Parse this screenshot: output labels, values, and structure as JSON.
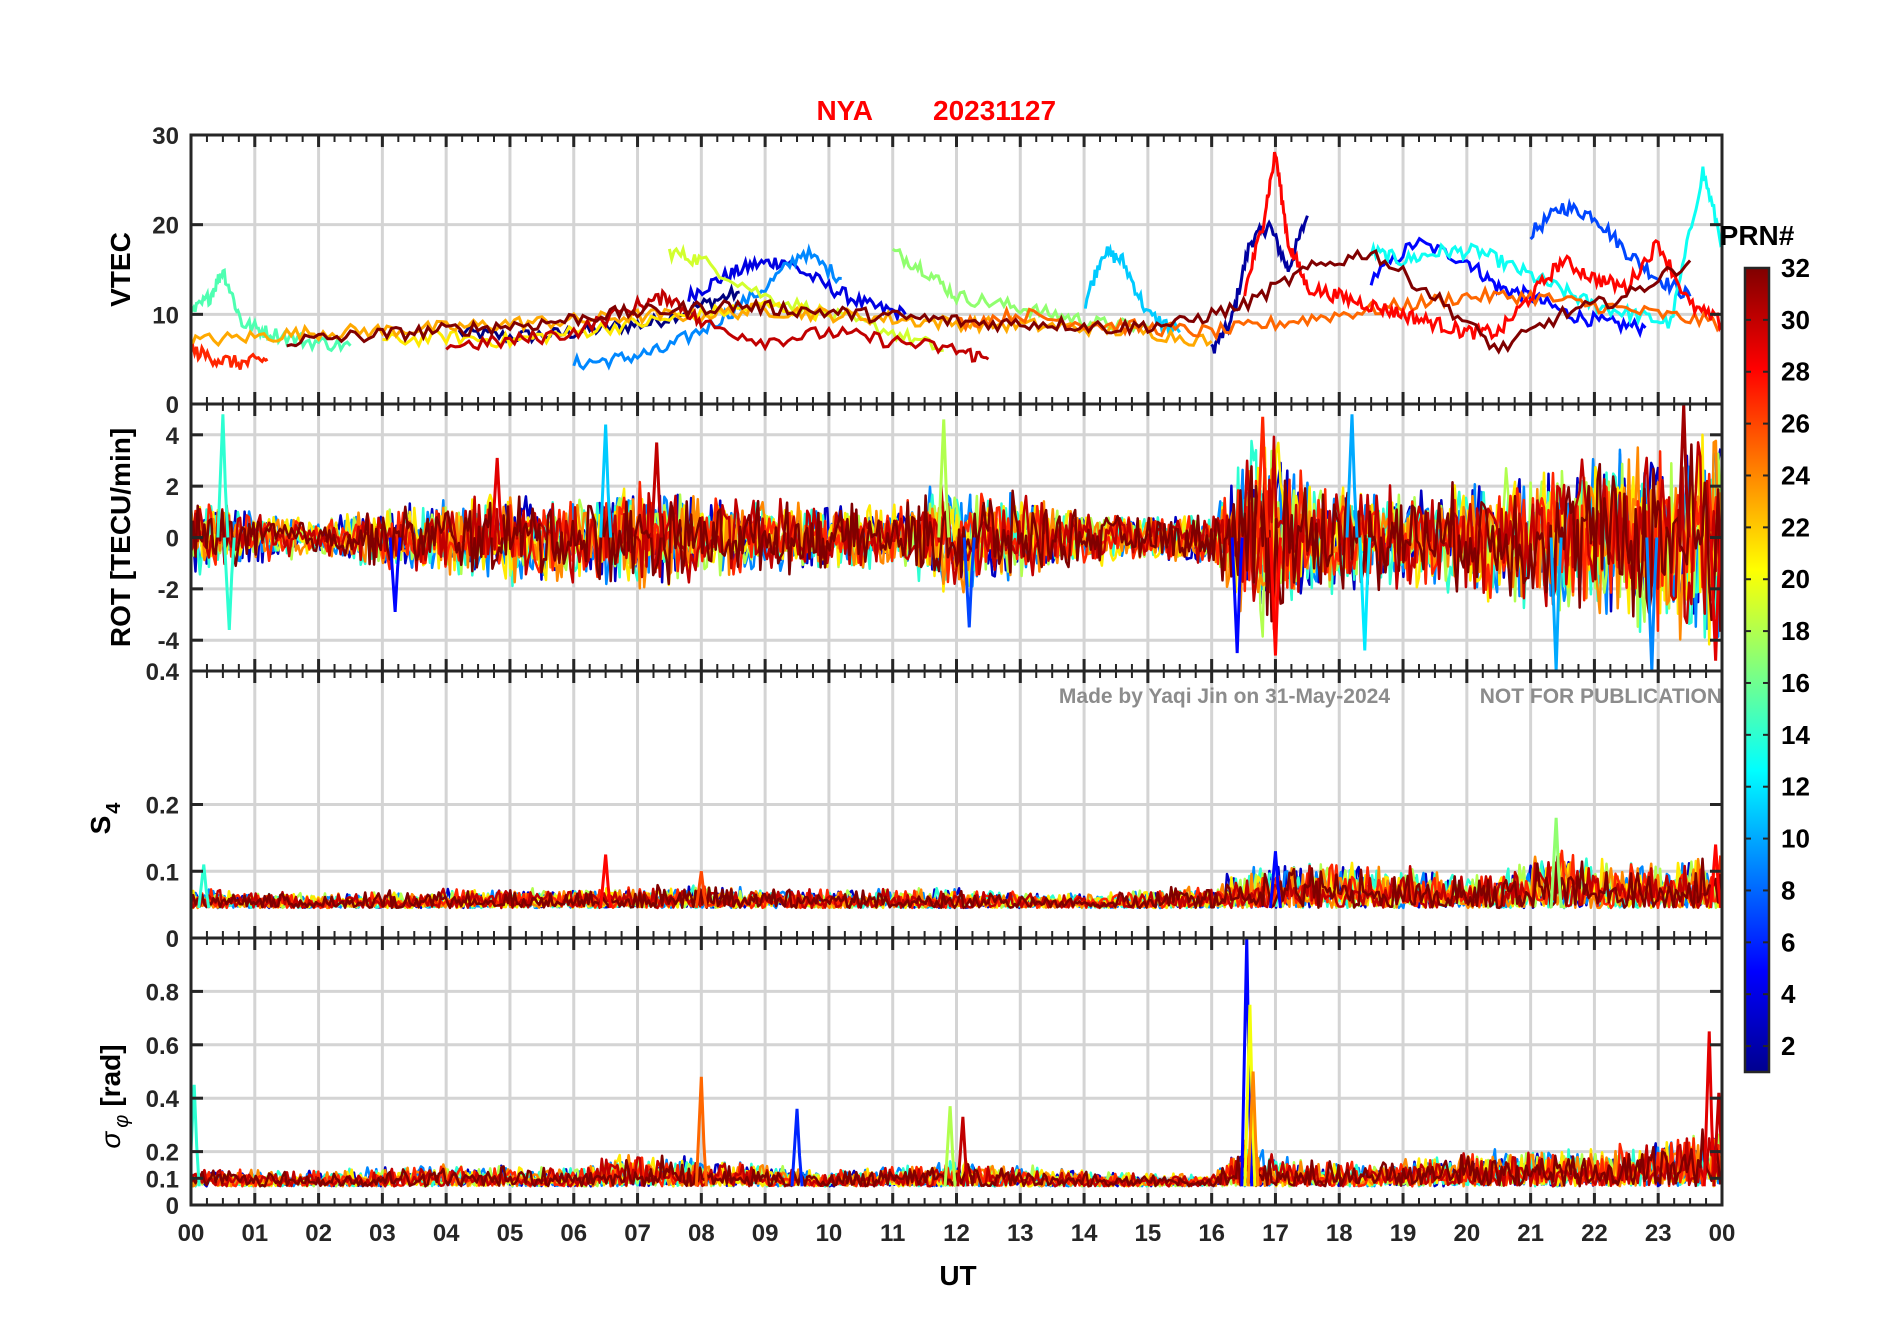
{
  "chart_data": {
    "type": "line",
    "title_station": "NYA",
    "title_date": "20231127",
    "title_color": "#ff0000",
    "watermark_left": "Made by Yaqi Jin on 31-May-2024",
    "watermark_right": "NOT FOR PUBLICATION",
    "xlabel": "UT",
    "x_unit": "hours",
    "xlim": [
      0,
      24
    ],
    "x_ticks": [
      "00",
      "01",
      "02",
      "03",
      "04",
      "05",
      "06",
      "07",
      "08",
      "09",
      "10",
      "11",
      "12",
      "13",
      "14",
      "15",
      "16",
      "17",
      "18",
      "19",
      "20",
      "21",
      "22",
      "23",
      "00"
    ],
    "colorbar": {
      "label": "PRN#",
      "range": [
        1,
        32
      ],
      "ticks": [
        "2",
        "4",
        "6",
        "8",
        "10",
        "12",
        "14",
        "16",
        "18",
        "20",
        "22",
        "24",
        "26",
        "28",
        "30",
        "32"
      ],
      "colormap": "jet"
    },
    "panels": [
      {
        "id": "vtec",
        "ylabel": "VTEC",
        "ylim": [
          0,
          30
        ],
        "y_ticks": [
          10,
          20,
          30
        ],
        "y_tick_labels": [
          "10",
          "20",
          "30"
        ],
        "series": [
          {
            "name": "PRN 1",
            "prn": 1,
            "x": [
              4.2,
              5.0,
              5.8,
              6.5,
              7.2,
              8.0,
              8.6
            ],
            "y": [
              8,
              7.5,
              7.8,
              8.5,
              9,
              11,
              12.5
            ]
          },
          {
            "name": "PRN 2",
            "prn": 2,
            "x": [
              16.0,
              16.3,
              16.6,
              16.9,
              17.2,
              17.5
            ],
            "y": [
              6,
              9,
              18,
              20,
              15,
              21
            ]
          },
          {
            "name": "PRN 4",
            "prn": 4,
            "x": [
              7.8,
              8.3,
              8.8,
              9.3,
              10,
              10.6,
              11.2
            ],
            "y": [
              12,
              14,
              15.5,
              16,
              13,
              11,
              10
            ]
          },
          {
            "name": "PRN 5",
            "prn": 5,
            "x": [
              18.5,
              19.2,
              20,
              20.5,
              21,
              21.6,
              22.2,
              22.8
            ],
            "y": [
              14,
              18,
              16,
              13,
              12,
              10,
              9,
              8.5
            ]
          },
          {
            "name": "PRN 7",
            "prn": 7,
            "x": [
              21.0,
              21.5,
              22.0,
              22.5,
              23,
              23.5
            ],
            "y": [
              19,
              22,
              21,
              17,
              14,
              12
            ]
          },
          {
            "name": "PRN 9",
            "prn": 9,
            "x": [
              6.0,
              6.7,
              7.4,
              8.2,
              9.0,
              9.6,
              10.2
            ],
            "y": [
              4.5,
              5,
              6,
              9,
              13,
              17,
              14
            ]
          },
          {
            "name": "PRN 11",
            "prn": 11,
            "x": [
              14.0,
              14.3,
              14.6,
              15,
              15.5
            ],
            "y": [
              11,
              17,
              16,
              10,
              8
            ]
          },
          {
            "name": "PRN 13",
            "prn": 13,
            "x": [
              18.5,
              19,
              19.6,
              20.2,
              20.8,
              21.4,
              22,
              22.6,
              23.2,
              23.7,
              24
            ],
            "y": [
              17,
              16,
              17,
              17,
              15,
              13,
              11,
              10,
              9,
              26,
              18
            ]
          },
          {
            "name": "PRN 15",
            "prn": 15,
            "x": [
              0,
              0.3,
              0.5,
              0.8,
              1.2,
              1.8,
              2.5
            ],
            "y": [
              10,
              12,
              15,
              9,
              8,
              7,
              6.5
            ]
          },
          {
            "name": "PRN 17",
            "prn": 17,
            "x": [
              11.0,
              11.5,
              12,
              12.8,
              13.5,
              14.2,
              15
            ],
            "y": [
              17,
              15,
              12,
              11,
              10,
              9,
              8.5
            ]
          },
          {
            "name": "PRN 19",
            "prn": 19,
            "x": [
              7.5,
              8,
              9,
              10,
              11,
              11.8
            ],
            "y": [
              17,
              16,
              12,
              10,
              8,
              6
            ]
          },
          {
            "name": "PRN 21",
            "prn": 21,
            "x": [
              3.0,
              4,
              5,
              6,
              7,
              8,
              9,
              10
            ],
            "y": [
              7,
              7.5,
              7,
              8,
              9,
              10,
              11,
              10
            ]
          },
          {
            "name": "PRN 23",
            "prn": 23,
            "x": [
              0,
              1,
              2,
              3,
              4,
              5,
              6,
              7,
              8,
              9,
              10,
              11,
              12,
              13,
              14,
              15,
              16
            ],
            "y": [
              7,
              7.5,
              8,
              8.2,
              8.5,
              9,
              9.3,
              9.8,
              10,
              10.5,
              10,
              9.5,
              9,
              8.8,
              8.5,
              8,
              7
            ]
          },
          {
            "name": "PRN 25",
            "prn": 25,
            "x": [
              12,
              13,
              14,
              15,
              16,
              17,
              18,
              19,
              20,
              21,
              22,
              23,
              24
            ],
            "y": [
              9,
              10,
              9,
              8.5,
              8,
              9,
              10,
              11,
              12,
              12,
              11,
              10,
              9
            ]
          },
          {
            "name": "PRN 27",
            "prn": 27,
            "x": [
              0,
              0.4,
              0.8,
              1.2
            ],
            "y": [
              6,
              5,
              4.5,
              5
            ]
          },
          {
            "name": "PRN 28",
            "prn": 28,
            "x": [
              16.5,
              16.8,
              17.0,
              17.2,
              17.5,
              18,
              18.5,
              19,
              19.5,
              20,
              20.5,
              21,
              21.5,
              22,
              22.5,
              23,
              23.5,
              24
            ],
            "y": [
              12,
              20,
              28,
              18,
              13,
              12,
              11,
              10,
              9,
              8,
              8,
              12,
              16,
              14,
              13,
              18,
              11,
              9
            ]
          },
          {
            "name": "PRN 30",
            "prn": 30,
            "x": [
              4,
              5,
              6,
              7,
              7.5,
              8,
              9,
              10,
              11,
              12,
              12.5
            ],
            "y": [
              6.5,
              7,
              8,
              11,
              12,
              9,
              7,
              8,
              7,
              6,
              5
            ]
          },
          {
            "name": "PRN 32",
            "prn": 32,
            "x": [
              1.5,
              2.5,
              3.5,
              4.5,
              5.5,
              6.5,
              7.5,
              8.5,
              9.5,
              10.5,
              11.5,
              12.5,
              13.5,
              14.5,
              15.5,
              16.5,
              17.5,
              18.5,
              19.5,
              20.5,
              21.5,
              22.5,
              23.5
            ],
            "y": [
              7,
              7.5,
              8,
              8.5,
              9,
              10,
              10.5,
              11,
              10.5,
              10,
              9.5,
              9,
              9,
              8.5,
              9,
              11,
              15,
              17,
              12,
              6,
              10,
              12,
              16
            ]
          }
        ]
      },
      {
        "id": "rot",
        "ylabel": "ROT [TECU/min]",
        "ylim": [
          -5.2,
          5.2
        ],
        "y_ticks": [
          -4,
          -2,
          0,
          2,
          4
        ],
        "y_tick_labels": [
          "-4",
          "-2",
          "0",
          "2",
          "4"
        ],
        "corner_labels": {
          "top": "0",
          "bottom": "0.4"
        },
        "activity_envelope": {
          "x": [
            0,
            1,
            2,
            3,
            4,
            5,
            6,
            7,
            8,
            9,
            10,
            11,
            12,
            13,
            14,
            15,
            16,
            16.5,
            17,
            17.5,
            18,
            19,
            20,
            21,
            22,
            23,
            24
          ],
          "amp": [
            1.6,
            1.2,
            0.8,
            1.3,
            1.6,
            2.0,
            1.8,
            2.2,
            1.7,
            1.6,
            1.4,
            1.3,
            2.6,
            1.8,
            1.2,
            0.9,
            1.1,
            3.8,
            4.6,
            2.8,
            2.4,
            2.2,
            2.3,
            3.0,
            3.4,
            4.2,
            4.8
          ]
        },
        "peaks": [
          {
            "x": 0.5,
            "y": 4.8,
            "prn": 14
          },
          {
            "x": 0.6,
            "y": -3.6,
            "prn": 14
          },
          {
            "x": 3.2,
            "y": -2.9,
            "prn": 5
          },
          {
            "x": 4.8,
            "y": 3.1,
            "prn": 29
          },
          {
            "x": 6.5,
            "y": 4.4,
            "prn": 11
          },
          {
            "x": 7.3,
            "y": 3.7,
            "prn": 30
          },
          {
            "x": 11.8,
            "y": 4.6,
            "prn": 18
          },
          {
            "x": 12.2,
            "y": -3.5,
            "prn": 7
          },
          {
            "x": 16.4,
            "y": -4.5,
            "prn": 5
          },
          {
            "x": 16.8,
            "y": 4.7,
            "prn": 27
          },
          {
            "x": 17.0,
            "y": -4.6,
            "prn": 28
          },
          {
            "x": 18.2,
            "y": 4.8,
            "prn": 10
          },
          {
            "x": 18.4,
            "y": -4.4,
            "prn": 12
          },
          {
            "x": 21.4,
            "y": -5.2,
            "prn": 10
          },
          {
            "x": 22.9,
            "y": -5.2,
            "prn": 9
          },
          {
            "x": 23.4,
            "y": 5.2,
            "prn": 31
          },
          {
            "x": 23.9,
            "y": -4.8,
            "prn": 29
          }
        ]
      },
      {
        "id": "s4",
        "ylabel": "S4",
        "ylabel_main": "S",
        "ylabel_sub": "4",
        "ylim": [
          0,
          0.4
        ],
        "y_ticks": [
          0,
          0.1,
          0.2,
          0.4
        ],
        "y_tick_labels": [
          "0",
          "0.1",
          "0.2",
          "0.4"
        ],
        "baseline": 0.045,
        "activity_envelope": {
          "x": [
            0,
            2,
            4,
            6,
            8,
            10,
            12,
            14,
            15,
            16,
            16.5,
            17,
            18,
            19,
            20,
            21,
            21.5,
            22,
            23,
            24
          ],
          "amp": [
            0.02,
            0.015,
            0.02,
            0.02,
            0.025,
            0.02,
            0.02,
            0.015,
            0.02,
            0.025,
            0.045,
            0.05,
            0.05,
            0.045,
            0.035,
            0.05,
            0.07,
            0.05,
            0.045,
            0.06
          ]
        },
        "peaks": [
          {
            "x": 0.2,
            "y": 0.11,
            "prn": 14
          },
          {
            "x": 6.5,
            "y": 0.125,
            "prn": 28
          },
          {
            "x": 8.0,
            "y": 0.1,
            "prn": 26
          },
          {
            "x": 17.0,
            "y": 0.13,
            "prn": 5
          },
          {
            "x": 21.4,
            "y": 0.18,
            "prn": 17
          },
          {
            "x": 23.9,
            "y": 0.14,
            "prn": 28
          }
        ]
      },
      {
        "id": "sigma",
        "ylabel": "σ_φ [rad]",
        "ylabel_main": "σ",
        "ylabel_sub": "φ",
        "ylabel_unit": "[rad]",
        "ylim": [
          0,
          1.0
        ],
        "y_ticks": [
          0,
          0.1,
          0.2,
          0.4,
          0.6,
          0.8
        ],
        "y_tick_labels": [
          "0",
          "0.1",
          "0.2",
          "0.4",
          "0.6",
          "0.8"
        ],
        "baseline": 0.07,
        "activity_envelope": {
          "x": [
            0,
            2,
            4,
            6,
            7,
            8,
            9,
            10,
            12,
            14,
            16,
            16.5,
            17,
            18,
            19,
            20,
            21,
            22,
            23,
            24
          ],
          "amp": [
            0.05,
            0.04,
            0.06,
            0.05,
            0.1,
            0.08,
            0.06,
            0.04,
            0.07,
            0.04,
            0.03,
            0.12,
            0.08,
            0.06,
            0.07,
            0.09,
            0.1,
            0.1,
            0.12,
            0.18
          ]
        },
        "peaks": [
          {
            "x": 0.05,
            "y": 0.45,
            "prn": 14
          },
          {
            "x": 8.0,
            "y": 0.48,
            "prn": 25
          },
          {
            "x": 9.5,
            "y": 0.36,
            "prn": 6
          },
          {
            "x": 11.9,
            "y": 0.37,
            "prn": 18
          },
          {
            "x": 12.1,
            "y": 0.33,
            "prn": 30
          },
          {
            "x": 16.55,
            "y": 1.0,
            "prn": 5
          },
          {
            "x": 16.6,
            "y": 0.75,
            "prn": 20
          },
          {
            "x": 16.65,
            "y": 0.5,
            "prn": 24
          },
          {
            "x": 23.8,
            "y": 0.65,
            "prn": 29
          },
          {
            "x": 23.95,
            "y": 0.42,
            "prn": 30
          }
        ]
      }
    ]
  }
}
